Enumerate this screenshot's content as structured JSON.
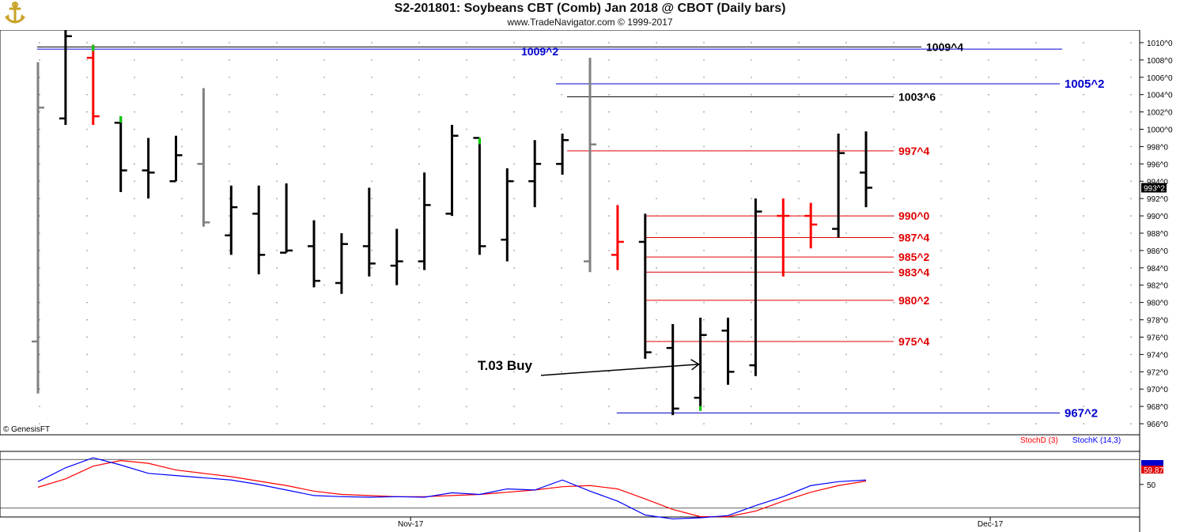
{
  "header": {
    "title": "S2-201801:  Soybeans CBT (Comb) Jan 2018 @ CBOT  (Daily bars)",
    "subtitle": "www.TradeNavigator.com © 1999-2017"
  },
  "footer": {
    "copyright": "© GenesisFT",
    "x_labels": [
      {
        "label": "Nov-17",
        "bar": 13.5
      },
      {
        "label": "Dec-17",
        "bar": 34.5
      }
    ]
  },
  "colors": {
    "bar_black": "#000000",
    "bar_gray": "#808080",
    "bar_red": "#ff0000",
    "tick_green": "#00cc00",
    "level_red": "#e00000",
    "level_blue": "#0000cc",
    "level_black": "#000000",
    "stochd": "#ff0000",
    "stochk": "#0000ff"
  },
  "chart_data": {
    "type": "ohlc",
    "price_unit": "eighths",
    "y_axis": {
      "min": 965.0,
      "max": 1011.0,
      "ticks": [
        "966^0",
        "968^0",
        "970^0",
        "972^0",
        "974^0",
        "976^0",
        "978^0",
        "980^0",
        "982^0",
        "984^0",
        "986^0",
        "988^0",
        "990^0",
        "992^0",
        "994^0",
        "996^0",
        "998^0",
        "1000^0",
        "1002^0",
        "1004^0",
        "1006^0",
        "1008^0",
        "1010^0"
      ],
      "tick_values": [
        966,
        968,
        970,
        972,
        974,
        976,
        978,
        980,
        982,
        984,
        986,
        988,
        990,
        992,
        994,
        996,
        998,
        1000,
        1002,
        1004,
        1006,
        1008,
        1010
      ],
      "last_price_label": "993^2",
      "last_price": 993.25
    },
    "bars": [
      {
        "o": 975.5,
        "h": 1007.75,
        "l": 969.5,
        "c": 1002.5,
        "color": "gray",
        "low_tick": ""
      },
      {
        "o": 1001.25,
        "h": 1012.0,
        "l": 1000.5,
        "c": 1010.75,
        "color": "black",
        "low_tick": ""
      },
      {
        "o": 1008.25,
        "h": 1009.75,
        "l": 1000.5,
        "c": 1001.5,
        "color": "red",
        "high_tick": "green"
      },
      {
        "o": 1000.75,
        "h": 1001.5,
        "l": 992.75,
        "c": 995.25,
        "color": "black",
        "high_tick": "green"
      },
      {
        "o": 995.25,
        "h": 999.0,
        "l": 992.0,
        "c": 995.0,
        "color": "black"
      },
      {
        "o": 994.0,
        "h": 999.25,
        "l": 994.0,
        "c": 997.0,
        "color": "black"
      },
      {
        "o": 996.0,
        "h": 1004.75,
        "l": 988.75,
        "c": 989.25,
        "color": "gray"
      },
      {
        "o": 987.75,
        "h": 993.5,
        "l": 985.5,
        "c": 991.0,
        "color": "black"
      },
      {
        "o": 990.25,
        "h": 993.5,
        "l": 983.25,
        "c": 985.5,
        "color": "black"
      },
      {
        "o": 985.75,
        "h": 993.75,
        "l": 985.75,
        "c": 986.0,
        "color": "black"
      },
      {
        "o": 986.5,
        "h": 989.5,
        "l": 981.75,
        "c": 982.5,
        "color": "black"
      },
      {
        "o": 982.25,
        "h": 988.0,
        "l": 981.0,
        "c": 986.75,
        "color": "black"
      },
      {
        "o": 986.5,
        "h": 993.25,
        "l": 983.0,
        "c": 984.5,
        "color": "black"
      },
      {
        "o": 984.25,
        "h": 988.5,
        "l": 982.0,
        "c": 984.75,
        "color": "black"
      },
      {
        "o": 984.75,
        "h": 995.0,
        "l": 983.75,
        "c": 991.25,
        "color": "black"
      },
      {
        "o": 990.25,
        "h": 1000.5,
        "l": 990.0,
        "c": 999.25,
        "color": "black"
      },
      {
        "o": 999.0,
        "h": 999.0,
        "l": 985.5,
        "c": 986.5,
        "color": "black",
        "high_tick": "green"
      },
      {
        "o": 987.25,
        "h": 995.5,
        "l": 984.75,
        "c": 994.0,
        "color": "black"
      },
      {
        "o": 994.0,
        "h": 998.75,
        "l": 991.0,
        "c": 996.0,
        "color": "black"
      },
      {
        "o": 996.0,
        "h": 999.5,
        "l": 994.75,
        "c": 998.75,
        "color": "black"
      },
      {
        "o": 984.75,
        "h": 1008.25,
        "l": 983.5,
        "c": 998.25,
        "color": "gray"
      },
      {
        "o": 985.5,
        "h": 991.25,
        "l": 983.75,
        "c": 987.0,
        "color": "red"
      },
      {
        "o": 987.0,
        "h": 990.25,
        "l": 973.5,
        "c": 974.25,
        "color": "black"
      },
      {
        "o": 974.75,
        "h": 977.5,
        "l": 967.0,
        "c": 967.75,
        "color": "black"
      },
      {
        "o": 969.0,
        "h": 978.25,
        "l": 967.5,
        "c": 976.25,
        "color": "black",
        "low_tick": "green"
      },
      {
        "o": 976.75,
        "h": 978.25,
        "l": 970.5,
        "c": 972.0,
        "color": "black"
      },
      {
        "o": 972.75,
        "h": 992.0,
        "l": 971.5,
        "c": 990.5,
        "color": "black"
      },
      {
        "o": 990.0,
        "h": 992.0,
        "l": 983.0,
        "c": 990.0,
        "color": "red"
      },
      {
        "o": 990.0,
        "h": 991.5,
        "l": 986.25,
        "c": 989.0,
        "color": "red"
      },
      {
        "o": 988.5,
        "h": 999.5,
        "l": 987.5,
        "c": 997.25,
        "color": "black"
      },
      {
        "o": 995.0,
        "h": 999.75,
        "l": 991.0,
        "c": 993.25,
        "color": "black"
      }
    ],
    "levels": [
      {
        "label": "1009^4",
        "value": 1009.5,
        "color": "black",
        "bar_start": 1
      },
      {
        "label": "1009^2",
        "value": 1009.25,
        "color": "blue",
        "bar_start": 1
      },
      {
        "label": "1005^2",
        "value": 1005.25,
        "color": "blue",
        "bar_start": 19.8
      },
      {
        "label": "1003^6",
        "value": 1003.75,
        "color": "black",
        "bar_start": 20.2
      },
      {
        "label": "997^4",
        "value": 997.5,
        "color": "red",
        "bar_start": 20.2
      },
      {
        "label": "990^0",
        "value": 990.0,
        "color": "red",
        "bar_start": 23
      },
      {
        "label": "987^4",
        "value": 987.5,
        "color": "red",
        "bar_start": 23
      },
      {
        "label": "985^2",
        "value": 985.25,
        "color": "red",
        "bar_start": 23
      },
      {
        "label": "983^4",
        "value": 983.5,
        "color": "red",
        "bar_start": 23
      },
      {
        "label": "980^2",
        "value": 980.25,
        "color": "red",
        "bar_start": 23
      },
      {
        "label": "975^4",
        "value": 975.5,
        "color": "red",
        "bar_start": 23
      },
      {
        "label": "967^2",
        "value": 967.25,
        "color": "blue",
        "bar_start": 22
      }
    ],
    "annotation": {
      "label": "T.03 Buy",
      "target_bar": 24,
      "target_value": 972.5
    },
    "stochastic": {
      "legend": [
        {
          "label": "StochD (3)",
          "color": "#ff0000"
        },
        {
          "label": "StochK (14,3)",
          "color": "#0000ff"
        }
      ],
      "y_ticks": [
        50
      ],
      "ylim": [
        0,
        100
      ],
      "last_value_label": "59.87",
      "stochK": [
        55,
        80,
        98,
        85,
        70,
        66,
        62,
        58,
        50,
        40,
        30,
        28,
        27,
        28,
        27,
        35,
        32,
        42,
        40,
        58,
        38,
        20,
        -5,
        -12,
        -10,
        -6,
        12,
        28,
        48,
        55,
        58
      ],
      "stochD": [
        45,
        60,
        83,
        93,
        88,
        76,
        70,
        64,
        56,
        48,
        38,
        32,
        30,
        28,
        28,
        30,
        32,
        36,
        40,
        46,
        48,
        42,
        24,
        5,
        -8,
        -8,
        2,
        20,
        36,
        48,
        56
      ]
    }
  }
}
